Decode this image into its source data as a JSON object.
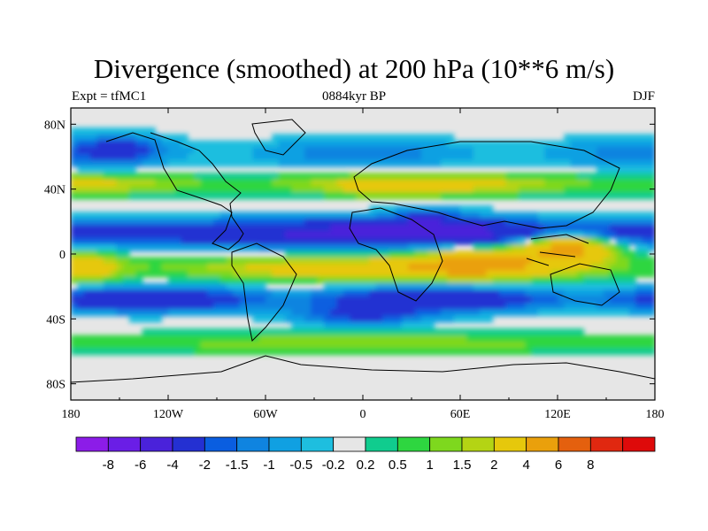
{
  "title": "Divergence (smoothed) at 200 hPa (10**6 m/s)",
  "subtitle_left": "Expt = tfMC1",
  "subtitle_center": "0884kyr BP",
  "subtitle_right": "DJF",
  "chart_data": {
    "type": "heatmap",
    "title": "Divergence (smoothed) at 200 hPa (10**6 m/s)",
    "variable": "Divergence (smoothed)",
    "level": "200 hPa",
    "units": "10**6 m/s",
    "experiment": "tfMC1",
    "time": "0884kyr BP",
    "season": "DJF",
    "x_ticks": [
      "180",
      "120W",
      "60W",
      "0",
      "60E",
      "120E",
      "180"
    ],
    "x_tick_values": [
      -180,
      -120,
      -60,
      0,
      60,
      120,
      180
    ],
    "y_ticks": [
      "80N",
      "40N",
      "0",
      "40S",
      "80S"
    ],
    "y_tick_values": [
      80,
      40,
      0,
      -40,
      -80
    ],
    "xlim": [
      -180,
      180
    ],
    "ylim": [
      -90,
      90
    ],
    "colorbar": {
      "levels": [
        -10,
        -8,
        -6,
        -4,
        -2,
        -1.5,
        -1,
        -0.5,
        -0.2,
        0.2,
        0.5,
        1,
        1.5,
        2,
        4,
        6,
        8,
        10
      ],
      "labels": [
        "-8",
        "-6",
        "-4",
        "-2",
        "-1.5",
        "-1",
        "-0.5",
        "-0.2",
        "0.2",
        "0.5",
        "1",
        "1.5",
        "2",
        "4",
        "6",
        "8"
      ],
      "colors": [
        "#8c1ce8",
        "#6a1ee6",
        "#4a22da",
        "#2430d2",
        "#0a5ee0",
        "#0f84e0",
        "#10a0e2",
        "#1ebedf",
        "#e6e6e6",
        "#10cc8e",
        "#2ed640",
        "#7ed81e",
        "#b4d414",
        "#e6c80c",
        "#eaa00c",
        "#e4600e",
        "#e02810",
        "#de0a0a"
      ]
    },
    "bands": [
      {
        "lat": 60,
        "desc": "weak mixed",
        "value": -0.7
      },
      {
        "lat": 42,
        "desc": "orange/yellow convergence-divergence mid-lat band",
        "value": 1.5
      },
      {
        "lat": 12,
        "desc": "strong negative tropical north band",
        "value": -5
      },
      {
        "lat": -8,
        "desc": "positive equatorial band, max over Maritime Continent",
        "value": 4
      },
      {
        "lat": -28,
        "desc": "negative subtropical south band",
        "value": -2.5
      },
      {
        "lat": -55,
        "desc": "positive southern mid-lat band",
        "value": 1
      }
    ]
  }
}
